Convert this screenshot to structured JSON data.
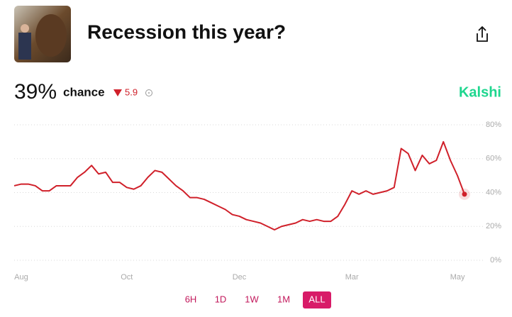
{
  "title": "Recession this year?",
  "source": "Kalshi",
  "range_buttons": [
    "6H",
    "1D",
    "1W",
    "1M",
    "ALL"
  ],
  "selected_range": "ALL",
  "chart_data": {
    "type": "line",
    "current": {
      "value": 39,
      "label": "39%"
    },
    "current_text": "chance",
    "change": 5.9,
    "change_direction": "down",
    "color": "#d0202a",
    "categories": [
      null,
      "Aug",
      null,
      null,
      null,
      null,
      null,
      null,
      null,
      null,
      null,
      null,
      null,
      null,
      null,
      null,
      "Oct",
      null,
      null,
      null,
      null,
      null,
      null,
      null,
      null,
      null,
      null,
      null,
      null,
      null,
      null,
      null,
      "Dec",
      null,
      null,
      null,
      null,
      null,
      null,
      null,
      null,
      null,
      null,
      null,
      null,
      null,
      null,
      null,
      "Mar",
      null,
      null,
      null,
      null,
      null,
      null,
      null,
      null,
      null,
      null,
      null,
      null,
      null,
      null,
      "May",
      null
    ],
    "values": [
      44,
      45,
      45,
      44,
      41,
      41,
      44,
      44,
      44,
      49,
      52,
      56,
      51,
      52,
      46,
      46,
      43,
      42,
      44,
      49,
      53,
      52,
      48,
      44,
      41,
      37,
      37,
      36,
      34,
      32,
      30,
      27,
      26,
      24,
      23,
      22,
      20,
      18,
      20,
      21,
      22,
      24,
      23,
      24,
      23,
      23,
      26,
      33,
      41,
      39,
      41,
      39,
      40,
      41,
      43,
      66,
      63,
      53,
      62,
      57,
      59,
      70,
      59,
      50,
      39
    ],
    "ylim": [
      0,
      80
    ],
    "yticks": [
      {
        "value": 0,
        "label": "0%"
      },
      {
        "value": 20,
        "label": "20%"
      },
      {
        "value": 40,
        "label": "40%"
      },
      {
        "value": 60,
        "label": "60%"
      },
      {
        "value": 80,
        "label": "80%"
      }
    ],
    "grid": true
  }
}
